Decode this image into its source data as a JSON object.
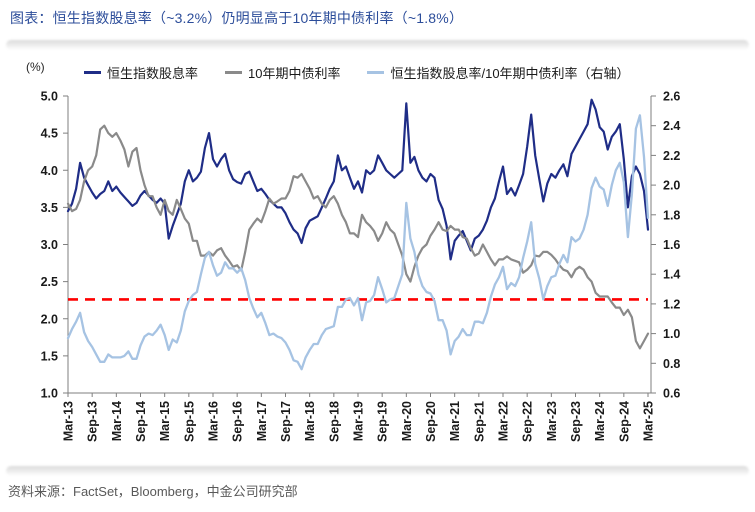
{
  "header": {
    "title": "图表：恒生指数股息率（~3.2%）仍明显高于10年期中债利率（~1.8%）"
  },
  "footer": {
    "source": "资料来源：FactSet，Bloomberg，中金公司研究部"
  },
  "colors": {
    "title": "#2c4d9a",
    "axis_line": "#7f7f7f",
    "tick_text": "#1a1a1a",
    "source_text": "#595959",
    "reference_line": "#fe0000",
    "series_hsi": "#1f2d87",
    "series_cgb": "#8a8a8a",
    "series_ratio": "#a6c3e3"
  },
  "chart_data": {
    "type": "line",
    "title": "恒生指数股息率（~3.2%）仍明显高于10年期中债利率（~1.8%）",
    "legend_position": "top",
    "grid": "off",
    "y_left": {
      "label": "(%)",
      "min": 1.0,
      "max": 5.0,
      "ticks": [
        "1.0",
        "1.5",
        "2.0",
        "2.5",
        "3.0",
        "3.5",
        "4.0",
        "4.5",
        "5.0"
      ]
    },
    "y_right": {
      "label": "",
      "min": 0.6,
      "max": 2.6,
      "ticks": [
        "0.6",
        "0.8",
        "1.0",
        "1.2",
        "1.4",
        "1.6",
        "1.8",
        "2.0",
        "2.2",
        "2.4",
        "2.6"
      ]
    },
    "x": {
      "start": "Mar-13",
      "end": "Mar-25",
      "frequency": "monthly",
      "tick_labels": [
        "Mar-13",
        "Sep-13",
        "Mar-14",
        "Sep-14",
        "Mar-15",
        "Sep-15",
        "Mar-16",
        "Sep-16",
        "Mar-17",
        "Sep-17",
        "Mar-18",
        "Sep-18",
        "Mar-19",
        "Sep-19",
        "Mar-20",
        "Sep-20",
        "Mar-21",
        "Sep-21",
        "Mar-22",
        "Sep-22",
        "Mar-23",
        "Sep-23",
        "Mar-24",
        "Sep-24",
        "Mar-25"
      ]
    },
    "reference_line": {
      "value_left_axis": 2.26,
      "value_right_axis": 1.23,
      "style": "dashed",
      "color": "#fe0000"
    },
    "series": [
      {
        "name": "恒生指数股息率",
        "axis": "left",
        "color": "#1f2d87",
        "current_value_pct": 3.2,
        "values": [
          3.45,
          3.55,
          3.75,
          4.1,
          3.9,
          3.8,
          3.7,
          3.62,
          3.68,
          3.72,
          3.85,
          3.72,
          3.78,
          3.7,
          3.64,
          3.58,
          3.52,
          3.56,
          3.66,
          3.72,
          3.66,
          3.6,
          3.56,
          3.62,
          3.55,
          3.08,
          3.25,
          3.4,
          3.55,
          3.85,
          4.0,
          3.85,
          3.9,
          3.98,
          4.3,
          4.5,
          4.15,
          4.05,
          4.15,
          4.22,
          4.0,
          3.88,
          3.84,
          3.82,
          3.95,
          3.98,
          3.85,
          3.72,
          3.75,
          3.68,
          3.6,
          3.55,
          3.5,
          3.5,
          3.42,
          3.3,
          3.2,
          3.15,
          3.02,
          3.22,
          3.32,
          3.35,
          3.38,
          3.5,
          3.62,
          3.75,
          3.85,
          4.2,
          4.0,
          4.05,
          3.9,
          3.75,
          3.85,
          3.7,
          4.0,
          3.95,
          4.0,
          4.2,
          4.1,
          4.0,
          3.95,
          3.9,
          3.95,
          4.0,
          4.9,
          4.1,
          4.18,
          4.0,
          3.9,
          3.85,
          3.95,
          3.9,
          3.6,
          3.48,
          3.25,
          2.8,
          3.05,
          3.12,
          3.18,
          3.05,
          2.92,
          3.08,
          3.12,
          3.2,
          3.32,
          3.5,
          3.62,
          3.85,
          4.05,
          3.68,
          3.76,
          3.66,
          3.8,
          3.95,
          4.32,
          4.75,
          4.2,
          3.88,
          3.58,
          3.82,
          3.95,
          3.9,
          4.0,
          4.08,
          3.92,
          4.22,
          4.32,
          4.42,
          4.52,
          4.62,
          4.95,
          4.82,
          4.58,
          4.52,
          4.28,
          4.45,
          4.52,
          4.62,
          4.15,
          3.5,
          3.92,
          4.05,
          3.95,
          3.72,
          3.2
        ]
      },
      {
        "name": "10年期中债利率",
        "axis": "left",
        "color": "#8a8a8a",
        "current_value_pct": 1.8,
        "values": [
          3.55,
          3.45,
          3.48,
          3.6,
          3.85,
          4.0,
          4.05,
          4.2,
          4.55,
          4.6,
          4.5,
          4.45,
          4.5,
          4.4,
          4.28,
          4.05,
          4.25,
          4.3,
          4.0,
          3.8,
          3.65,
          3.65,
          3.5,
          3.4,
          3.6,
          3.45,
          3.4,
          3.6,
          3.48,
          3.35,
          3.28,
          3.05,
          3.05,
          2.85,
          2.85,
          2.9,
          2.85,
          2.92,
          2.95,
          2.85,
          2.78,
          2.7,
          2.72,
          2.65,
          2.9,
          3.2,
          3.28,
          3.35,
          3.3,
          3.45,
          3.62,
          3.55,
          3.58,
          3.62,
          3.62,
          3.72,
          3.92,
          3.9,
          3.95,
          3.85,
          3.75,
          3.62,
          3.65,
          3.55,
          3.5,
          3.6,
          3.65,
          3.55,
          3.4,
          3.3,
          3.15,
          3.15,
          3.1,
          3.4,
          3.3,
          3.25,
          3.18,
          3.05,
          3.15,
          3.3,
          3.2,
          3.15,
          3.0,
          2.85,
          2.6,
          2.5,
          2.7,
          2.85,
          2.95,
          3.0,
          3.12,
          3.2,
          3.3,
          3.2,
          3.18,
          3.25,
          3.2,
          3.2,
          3.1,
          3.08,
          2.95,
          2.85,
          2.88,
          3.0,
          2.9,
          2.8,
          2.72,
          2.8,
          2.8,
          2.84,
          2.8,
          2.78,
          2.76,
          2.62,
          2.66,
          2.72,
          2.85,
          2.84,
          2.9,
          2.9,
          2.86,
          2.8,
          2.72,
          2.66,
          2.64,
          2.56,
          2.66,
          2.7,
          2.66,
          2.56,
          2.5,
          2.35,
          2.3,
          2.3,
          2.3,
          2.22,
          2.15,
          2.15,
          2.05,
          2.12,
          2.02,
          1.7,
          1.6,
          1.7,
          1.8
        ]
      },
      {
        "name": "恒生指数股息率/10年期中债利率（右轴）",
        "axis": "right",
        "color": "#a6c3e3",
        "values": [
          0.97,
          1.03,
          1.08,
          1.14,
          1.01,
          0.95,
          0.91,
          0.86,
          0.81,
          0.81,
          0.86,
          0.84,
          0.84,
          0.84,
          0.85,
          0.88,
          0.83,
          0.83,
          0.92,
          0.98,
          1.0,
          0.99,
          1.02,
          1.06,
          0.99,
          0.89,
          0.96,
          0.94,
          1.02,
          1.15,
          1.22,
          1.26,
          1.28,
          1.4,
          1.51,
          1.55,
          1.46,
          1.39,
          1.41,
          1.48,
          1.44,
          1.44,
          1.41,
          1.44,
          1.36,
          1.24,
          1.17,
          1.11,
          1.14,
          1.07,
          0.99,
          1.0,
          0.98,
          0.97,
          0.94,
          0.89,
          0.82,
          0.81,
          0.76,
          0.84,
          0.89,
          0.93,
          0.93,
          0.99,
          1.03,
          1.04,
          1.05,
          1.18,
          1.18,
          1.23,
          1.24,
          1.19,
          1.24,
          1.09,
          1.21,
          1.22,
          1.26,
          1.38,
          1.3,
          1.21,
          1.23,
          1.24,
          1.32,
          1.4,
          1.88,
          1.64,
          1.55,
          1.4,
          1.32,
          1.28,
          1.27,
          1.22,
          1.09,
          1.09,
          1.02,
          0.86,
          0.95,
          0.98,
          1.03,
          0.99,
          0.99,
          1.08,
          1.08,
          1.07,
          1.14,
          1.25,
          1.33,
          1.38,
          1.45,
          1.3,
          1.34,
          1.32,
          1.38,
          1.51,
          1.62,
          1.75,
          1.47,
          1.37,
          1.23,
          1.32,
          1.38,
          1.39,
          1.47,
          1.53,
          1.48,
          1.65,
          1.62,
          1.64,
          1.7,
          1.8,
          1.98,
          2.05,
          1.99,
          1.97,
          1.86,
          2.0,
          2.1,
          2.15,
          2.02,
          1.65,
          1.94,
          2.38,
          2.47,
          2.19,
          1.78
        ]
      }
    ]
  }
}
